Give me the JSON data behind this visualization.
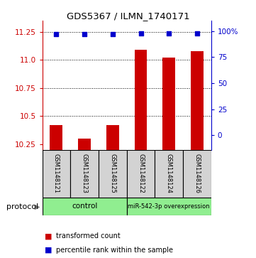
{
  "title": "GDS5367 / ILMN_1740171",
  "samples": [
    "GSM1148121",
    "GSM1148123",
    "GSM1148125",
    "GSM1148122",
    "GSM1148124",
    "GSM1148126"
  ],
  "red_values": [
    10.42,
    10.3,
    10.42,
    11.09,
    11.02,
    11.08
  ],
  "blue_values": [
    97,
    97,
    97,
    98,
    98,
    98
  ],
  "ylim_left": [
    10.2,
    11.35
  ],
  "ylim_right": [
    -13.75,
    110
  ],
  "yticks_left": [
    10.25,
    10.5,
    10.75,
    11.0,
    11.25
  ],
  "yticks_right": [
    0,
    25,
    50,
    75,
    100
  ],
  "yticklabels_right": [
    "0",
    "25",
    "50",
    "75",
    "100%"
  ],
  "red_color": "#CC0000",
  "blue_color": "#0000CC",
  "bar_width": 0.45,
  "sample_box_color": "#D3D3D3",
  "group_color": "#90EE90",
  "control_label": "control",
  "mir_label": "miR-542-3p overexpression",
  "protocol_label": "protocol",
  "legend_red": "transformed count",
  "legend_blue": "percentile rank within the sample"
}
